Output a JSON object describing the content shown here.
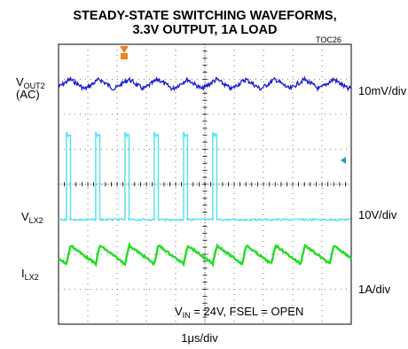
{
  "title_line1": "STEADY-STATE SWITCHING WAVEFORMS,",
  "title_line2": "3.3V OUTPUT, 1A LOAD",
  "figure_id": "TOC26",
  "channels": {
    "vout": {
      "name": "V",
      "sub": "OUT2",
      "extra": "(AC)",
      "scale": "10mV/div",
      "color": "#1a1acd"
    },
    "vlx": {
      "name": "V",
      "sub": "LX2",
      "scale": "10V/div",
      "color": "#4fe3f0"
    },
    "ilx": {
      "name": "I",
      "sub": "LX2",
      "scale": "1A/div",
      "color": "#22dd22"
    }
  },
  "annotation": {
    "pre": "V",
    "sub": "IN",
    "post": " = 24V, FSEL = OPEN"
  },
  "xlabel": "1μs/div",
  "chart_data": {
    "type": "line",
    "title": "STEADY-STATE SWITCHING WAVEFORMS, 3.3V OUTPUT, 1A LOAD",
    "xlabel": "1μs/div",
    "grid": true,
    "x_divisions": 10,
    "y_divisions": 8,
    "switching_period_us": 1.0,
    "series": [
      {
        "name": "VOUT2 (AC)",
        "scale": "10mV/div",
        "ripple_mV_pp": 10
      },
      {
        "name": "VLX2",
        "scale": "10V/div",
        "high_V": 24,
        "low_V": 0,
        "pulse_starts_us": [
          0.27,
          1.27,
          2.27,
          3.27,
          4.27,
          5.27
        ],
        "on_time_us": 0.14
      },
      {
        "name": "ILX2",
        "scale": "1A/div",
        "valley_A": 0.55,
        "peak_A": 1.45
      }
    ]
  }
}
